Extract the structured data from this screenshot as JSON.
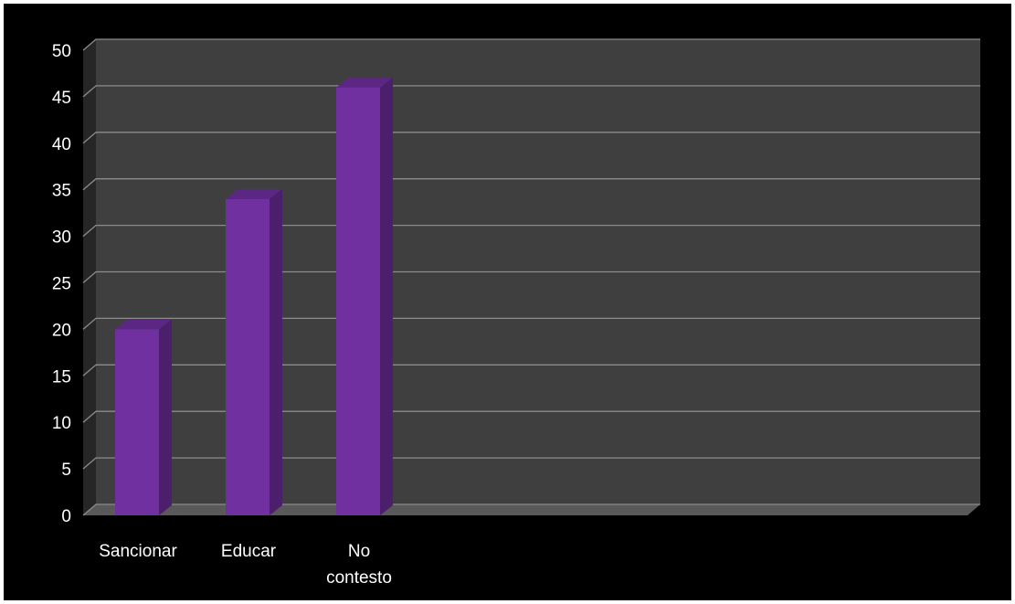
{
  "chart_data": {
    "type": "bar",
    "categories": [
      "Sancionar",
      "Educar",
      "No contesto"
    ],
    "category_lines": [
      [
        "Sancionar"
      ],
      [
        "Educar"
      ],
      [
        "No",
        "contesto"
      ]
    ],
    "values": [
      20,
      34,
      46
    ],
    "ylim": [
      0,
      50
    ],
    "yticks": [
      "0",
      "5",
      "10",
      "15",
      "20",
      "25",
      "30",
      "35",
      "40",
      "45",
      "50"
    ],
    "grid": true,
    "legend": "none",
    "colors": {
      "frame": "#000000",
      "plot_back": "#3f3f3f",
      "plot_side": "#262626",
      "floor": "#595959",
      "gridline": "#8c8c8c",
      "bar_front": "#7030a0",
      "bar_side": "#4b1f6b",
      "bar_top": "#5c2784",
      "text": "#ffffff"
    }
  }
}
